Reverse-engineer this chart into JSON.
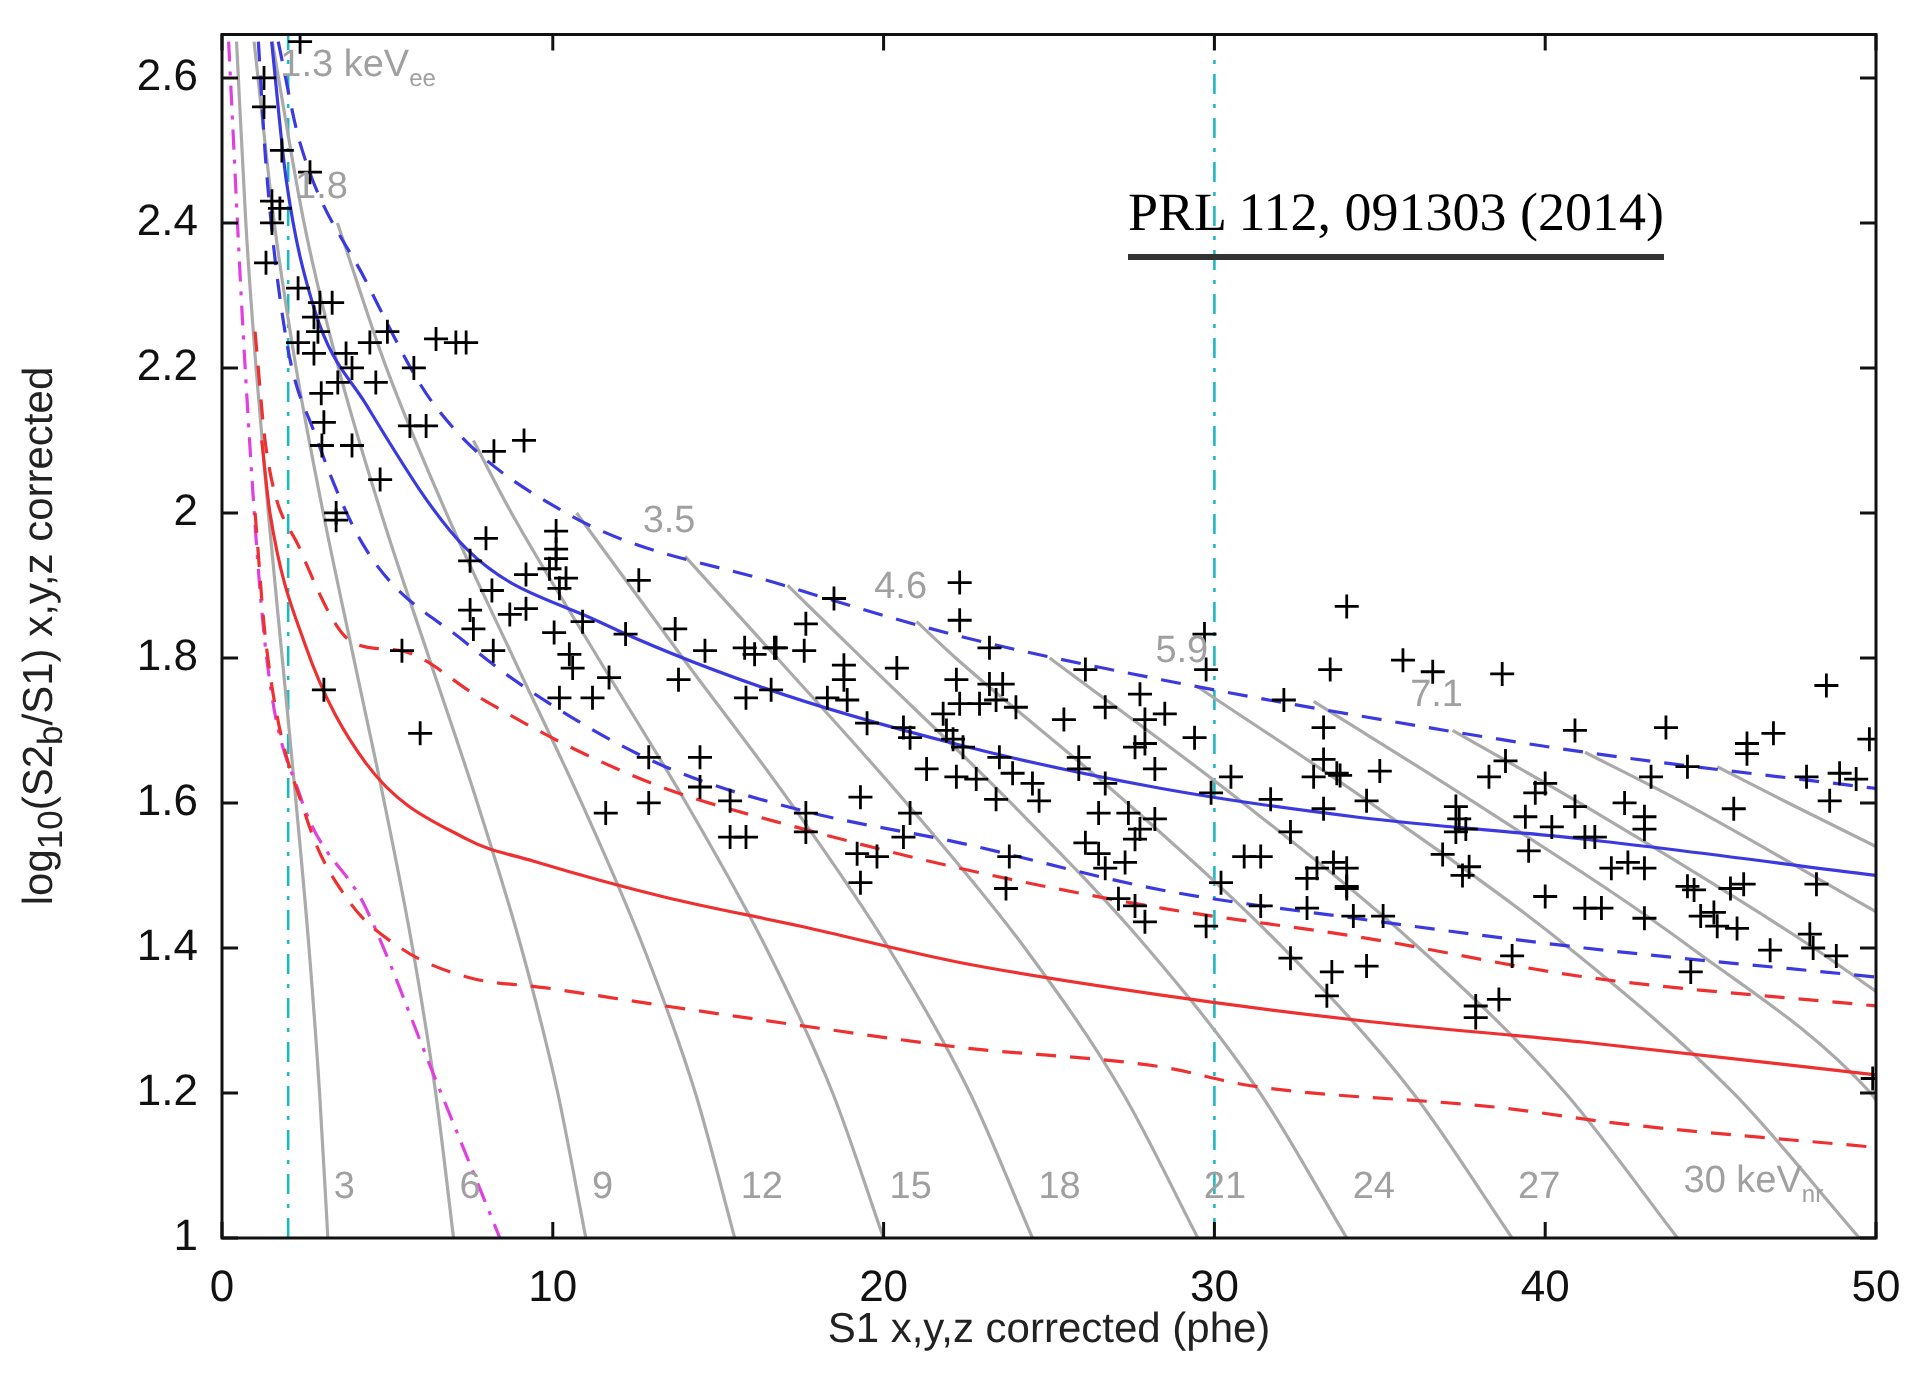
{
  "chart_data": {
    "type": "scatter",
    "xlabel": "S1 x,y,z corrected (phe)",
    "ylabel": "log$_{10}$(S2$_{b}$/S1) x,y,z corrected",
    "xlim": [
      0,
      50
    ],
    "ylim": [
      1,
      2.66
    ],
    "xticks": [
      0,
      10,
      20,
      30,
      40,
      50
    ],
    "yticks": [
      1,
      1.2,
      1.4,
      1.6,
      1.8,
      2,
      2.2,
      2.4,
      2.6
    ],
    "ref_lines": [
      {
        "axis": "x",
        "value": 2,
        "color": "#20b8c0",
        "line_style": "dashdot"
      },
      {
        "axis": "x",
        "value": 30,
        "color": "#20b8c0",
        "line_style": "dashdot"
      }
    ],
    "annotations": [
      "PRL 112, 091303 (2014)",
      {
        "text": "1.3 keV$_{ee}$",
        "x": 1.52,
        "y": 2.65
      },
      {
        "text": "1.8",
        "x": 3.49,
        "y": 2.4
      },
      {
        "text": "3.5",
        "x": 14.0,
        "y": 1.94
      },
      {
        "text": "4.6",
        "x": 21.0,
        "y": 1.85
      },
      {
        "text": "5.9",
        "x": 29.5,
        "y": 1.76
      },
      {
        "text": "7.1",
        "x": 37.2,
        "y": 1.7
      },
      {
        "text": "3",
        "x": 3.2,
        "y": 1
      },
      {
        "text": "6",
        "x": 7,
        "y": 1
      },
      {
        "text": "9",
        "x": 11,
        "y": 1
      },
      {
        "text": "12",
        "x": 15.5,
        "y": 1
      },
      {
        "text": "15",
        "x": 20,
        "y": 1
      },
      {
        "text": "18",
        "x": 24.5,
        "y": 1
      },
      {
        "text": "21",
        "x": 29.5,
        "y": 1
      },
      {
        "text": "24",
        "x": 34,
        "y": 1
      },
      {
        "text": "27",
        "x": 39,
        "y": 1
      },
      {
        "text": "30 keV$_{nr}$",
        "x": 44,
        "y": 1
      }
    ],
    "series": [
      {
        "marker": "cross",
        "color": "#000000",
        "x": [
          2.36,
          1.27,
          1.27,
          1.81,
          2.66,
          1.51,
          1.75,
          1.51,
          1.33,
          2.3,
          2.96,
          3.33,
          2.78,
          2.3,
          2.9,
          5.0,
          4.47,
          6.47,
          7.07,
          7.38,
          2.78,
          3.75,
          3.93,
          5.8,
          3.5,
          4.65,
          3.0,
          3.08,
          5.68,
          6.17,
          3.02,
          3.93,
          8.22,
          9.13,
          4.78,
          3.45,
          3.45,
          7.98,
          10.1,
          10.1,
          10.1,
          7.5,
          9.19,
          9.9,
          10.4,
          10.2,
          12.6,
          8.16,
          7.5,
          8.7,
          9.19,
          7.6,
          8.2,
          10.04,
          10.9,
          12.2,
          13.7,
          14.6,
          15.8,
          16.1,
          16.7,
          10.5,
          10.6,
          5.44,
          3.08,
          5.99,
          10.2,
          11.2,
          11.7,
          13.8,
          11.6,
          12.9,
          14.45,
          12.9,
          14.45,
          15.36,
          15.36,
          15.84,
          15.84,
          16.6,
          18.5,
          22.3,
          22.3,
          17.65,
          16.75,
          17.6,
          18.8,
          18.8,
          20.4,
          23.2,
          22.2,
          23.2,
          23.6,
          26.1,
          27.75,
          26.7,
          18.3,
          18.9,
          19.5,
          20.6,
          21.8,
          22.3,
          22.9,
          23.4,
          24.0,
          21.9,
          22.1,
          20.8,
          22.4,
          23.5,
          21.3,
          22.2,
          22.8,
          23.9,
          24.5,
          23.4,
          24.7,
          25.45,
          25.9,
          25.9,
          26.7,
          27.9,
          27.9,
          28.5,
          27.6,
          28.2,
          29.4,
          29.7,
          29.75,
          33.5,
          34.0,
          32.1,
          33.3,
          30.5,
          29.9,
          31.7,
          32.3,
          33.3,
          33.0,
          33.7,
          33.3,
          26.5,
          27.4,
          27.75,
          28.2,
          27.6,
          26.1,
          26.5,
          27.3,
          26.7,
          30.2,
          27.1,
          27.6,
          27.9,
          29.75,
          30.9,
          31.4,
          31.4,
          32.3,
          32.8,
          33.1,
          33.6,
          34.0,
          32.8,
          33.55,
          33.4,
          19.3,
          17.65,
          17.65,
          19.2,
          19.8,
          19.3,
          20.8,
          20.6,
          23.8,
          23.7,
          35.7,
          36.6,
          38.7,
          40.9,
          43.65,
          46.9,
          46.1,
          46.1,
          48.5,
          49.8,
          44.3,
          43.2,
          38.8,
          38.3,
          39.7,
          40.0,
          47.9,
          48.9,
          49.4,
          48.6,
          45.7,
          42.4,
          43.0,
          43.0,
          40.9,
          39.4,
          40.2,
          41.2,
          41.5,
          37.3,
          37.4,
          37.6,
          37.3,
          36.9,
          37.7,
          37.5,
          39.5,
          42.0,
          42.5,
          43.0,
          44.3,
          44.5,
          45.6,
          46.0,
          48.2,
          40.0,
          41.2,
          41.7,
          43.0,
          44.7,
          45.1,
          45.2,
          45.8,
          46.8,
          48.0,
          48.1,
          48.8,
          39.0,
          44.4,
          34.2,
          35.1,
          34.0,
          34.0,
          34.6,
          35.0,
          33.8,
          34.6,
          37.9,
          38.6,
          37.9,
          49.9
        ],
        "values": [
          2.65,
          2.6,
          2.56,
          2.5,
          2.47,
          2.43,
          2.42,
          2.4,
          2.345,
          2.31,
          2.29,
          2.29,
          2.27,
          2.235,
          2.25,
          2.25,
          2.235,
          2.24,
          2.235,
          2.235,
          2.22,
          2.22,
          2.2,
          2.2,
          2.18,
          2.18,
          2.165,
          2.125,
          2.12,
          2.12,
          2.093,
          2.093,
          2.085,
          2.1,
          2.046,
          2.0,
          1.99,
          1.965,
          1.975,
          1.95,
          1.937,
          1.934,
          1.915,
          1.923,
          1.91,
          1.896,
          1.907,
          1.893,
          1.866,
          1.86,
          1.868,
          1.84,
          1.81,
          1.835,
          1.85,
          1.833,
          1.84,
          1.81,
          1.814,
          1.805,
          1.814,
          1.805,
          1.786,
          1.81,
          1.756,
          1.696,
          1.745,
          1.745,
          1.773,
          1.77,
          1.586,
          1.663,
          1.663,
          1.6,
          1.622,
          1.603,
          1.553,
          1.553,
          1.745,
          1.756,
          1.882,
          1.904,
          1.852,
          1.847,
          1.814,
          1.81,
          1.79,
          1.77,
          1.786,
          1.814,
          1.77,
          1.764,
          1.764,
          1.784,
          1.75,
          1.732,
          1.745,
          1.742,
          1.71,
          1.704,
          1.723,
          1.737,
          1.737,
          1.742,
          1.732,
          1.7,
          1.688,
          1.69,
          1.677,
          1.663,
          1.647,
          1.636,
          1.633,
          1.641,
          1.627,
          1.605,
          1.603,
          1.715,
          1.663,
          1.647,
          1.627,
          1.715,
          1.682,
          1.723,
          1.677,
          1.647,
          1.69,
          1.833,
          1.784,
          1.784,
          1.871,
          1.742,
          1.704,
          1.636,
          1.614,
          1.605,
          1.56,
          1.66,
          1.636,
          1.641,
          1.592,
          1.586,
          1.586,
          1.564,
          1.578,
          1.55,
          1.545,
          1.53,
          1.518,
          1.51,
          1.49,
          1.468,
          1.458,
          1.436,
          1.43,
          1.526,
          1.526,
          1.458,
          1.386,
          1.496,
          1.51,
          1.518,
          1.485,
          1.455,
          1.367,
          1.334,
          1.608,
          1.586,
          1.56,
          1.53,
          1.526,
          1.49,
          1.586,
          1.553,
          1.526,
          1.482,
          1.797,
          1.781,
          1.778,
          1.7,
          1.704,
          1.696,
          1.682,
          1.668,
          1.762,
          1.688,
          1.65,
          1.636,
          1.658,
          1.636,
          1.614,
          1.627,
          1.636,
          1.641,
          1.633,
          1.603,
          1.592,
          1.6,
          1.581,
          1.564,
          1.595,
          1.581,
          1.567,
          1.553,
          1.553,
          1.595,
          1.578,
          1.564,
          1.56,
          1.529,
          1.512,
          1.5,
          1.534,
          1.51,
          1.518,
          1.51,
          1.485,
          1.48,
          1.482,
          1.488,
          1.488,
          1.471,
          1.455,
          1.455,
          1.441,
          1.444,
          1.449,
          1.43,
          1.427,
          1.397,
          1.419,
          1.4,
          1.389,
          1.389,
          1.367,
          1.444,
          1.444,
          1.51,
          1.482,
          1.375,
          1.644,
          1.638,
          1.603,
          1.32,
          1.329,
          1.304,
          1.22
        ]
      },
      {
        "type": "line",
        "marker": "none",
        "line_style": "solid",
        "color": "#3a3ae0",
        "x": [
          1.5,
          1.94,
          2.8,
          4.35,
          7.4,
          11.4,
          16.3,
          22.3,
          28.4,
          34.4,
          41.2,
          50
        ],
        "values": [
          2.65,
          2.46,
          2.28,
          2.15,
          1.95,
          1.85,
          1.76,
          1.68,
          1.62,
          1.58,
          1.55,
          1.5
        ]
      },
      {
        "type": "line",
        "marker": "none",
        "line_style": "dashed",
        "color": "#3a3ae0",
        "x": [
          1.7,
          2.36,
          4.35,
          6.4,
          10.4,
          17,
          22.3,
          28.4,
          34.4,
          41.2,
          50
        ],
        "values": [
          2.65,
          2.51,
          2.32,
          2.15,
          2.0,
          1.9,
          1.83,
          1.77,
          1.72,
          1.67,
          1.62
        ]
      },
      {
        "type": "line",
        "marker": "none",
        "line_style": "dashed",
        "color": "#3a3ae0",
        "x": [
          1.1,
          1.33,
          1.94,
          2.8,
          4.35,
          7.4,
          9.8,
          13.4,
          17.5,
          22.3,
          28.4,
          34.4,
          41.2,
          50
        ],
        "values": [
          2.65,
          2.48,
          2.24,
          2.11,
          1.95,
          1.82,
          1.74,
          1.65,
          1.59,
          1.545,
          1.48,
          1.44,
          1.4,
          1.36
        ]
      },
      {
        "type": "line",
        "marker": "none",
        "line_style": "solid",
        "color": "#ee3030",
        "x": [
          1.2,
          1.45,
          2.5,
          4.35,
          7.4,
          9.4,
          13.4,
          17.5,
          22.3,
          28.4,
          34.4,
          41.2,
          50
        ],
        "values": [
          2.1,
          2.0,
          1.82,
          1.655,
          1.55,
          1.52,
          1.47,
          1.43,
          1.38,
          1.335,
          1.3,
          1.27,
          1.225
        ]
      },
      {
        "type": "line",
        "marker": "none",
        "line_style": "dashed",
        "color": "#ee3030",
        "x": [
          1.0,
          1.33,
          2.36,
          4.0,
          5.4,
          7.8,
          10.4,
          13.4,
          17.5,
          22.3,
          28.4,
          34.4,
          41.2,
          50
        ],
        "values": [
          2.25,
          2.09,
          1.95,
          1.82,
          1.81,
          1.745,
          1.68,
          1.62,
          1.565,
          1.51,
          1.455,
          1.415,
          1.36,
          1.32
        ]
      },
      {
        "type": "line",
        "marker": "none",
        "line_style": "dashed",
        "color": "#ee3030",
        "x": [
          1.0,
          1.33,
          2.55,
          3.75,
          5.4,
          7.4,
          9.8,
          13.4,
          17.5,
          22.3,
          28.4,
          31.1,
          38.6,
          42.4,
          50
        ],
        "values": [
          2.0,
          1.82,
          1.58,
          1.47,
          1.4,
          1.36,
          1.345,
          1.32,
          1.293,
          1.263,
          1.236,
          1.21,
          1.18,
          1.157,
          1.125
        ]
      },
      {
        "type": "line",
        "marker": "none",
        "line_style": "dashdot",
        "color": "#e040e0",
        "x": [
          0.2,
          0.7,
          1.3,
          2.36,
          4.35,
          6.4,
          8.4
        ],
        "values": [
          2.65,
          2.2,
          1.82,
          1.61,
          1.455,
          1.225,
          1.0
        ]
      },
      {
        "type": "line",
        "marker": "none",
        "line_style": "solid",
        "color": "#aaaaaa",
        "x": [
          0.44,
          0.72,
          1.03,
          1.4,
          1.82,
          2.24,
          2.63,
          2.95,
          3.2
        ],
        "values": [
          2.65,
          2.4,
          2.2,
          2.0,
          1.8,
          1.6,
          1.4,
          1.2,
          1.0
        ]
      },
      {
        "type": "line",
        "marker": "none",
        "line_style": "solid",
        "color": "#aaaaaa",
        "x": [
          0.97,
          1.58,
          2.24,
          3.06,
          3.98,
          4.91,
          5.76,
          6.46,
          7
        ],
        "values": [
          2.65,
          2.4,
          2.2,
          2.0,
          1.8,
          1.6,
          1.4,
          1.2,
          1.0
        ]
      },
      {
        "type": "line",
        "marker": "none",
        "line_style": "solid",
        "color": "#aaaaaa",
        "x": [
          1.52,
          2.48,
          3.52,
          4.81,
          6.26,
          7.72,
          9.05,
          10.15,
          11
        ],
        "values": [
          2.65,
          2.4,
          2.2,
          2.0,
          1.8,
          1.6,
          1.4,
          1.2,
          1.0
        ]
      },
      {
        "type": "line",
        "marker": "none",
        "line_style": "solid",
        "color": "#aaaaaa",
        "x": [
          3.49,
          4.97,
          6.78,
          8.81,
          10.87,
          12.75,
          14.31,
          15.5
        ],
        "values": [
          2.4,
          2.2,
          2.0,
          1.8,
          1.6,
          1.4,
          1.2,
          1.0
        ]
      },
      {
        "type": "line",
        "marker": "none",
        "line_style": "solid",
        "color": "#aaaaaa",
        "x": [
          7.6,
          8.75,
          11.37,
          14.03,
          16.45,
          18.46,
          20
        ],
        "values": [
          2.1,
          2.0,
          1.8,
          1.6,
          1.4,
          1.2,
          1.0
        ]
      },
      {
        "type": "line",
        "marker": "none",
        "line_style": "solid",
        "color": "#aaaaaa",
        "x": [
          10.72,
          13.93,
          17.19,
          20.15,
          22.61,
          24.5
        ],
        "values": [
          2.0,
          1.8,
          1.6,
          1.4,
          1.2,
          1.0
        ]
      },
      {
        "type": "line",
        "marker": "none",
        "line_style": "solid",
        "color": "#aaaaaa",
        "x": [
          14.0,
          16.78,
          20.69,
          24.27,
          27.23,
          29.5
        ],
        "values": [
          1.94,
          1.8,
          1.6,
          1.4,
          1.2,
          1.0
        ]
      },
      {
        "type": "line",
        "marker": "none",
        "line_style": "solid",
        "color": "#aaaaaa",
        "x": [
          17.1,
          19.34,
          23.85,
          27.97,
          31.38,
          34
        ],
        "values": [
          1.9,
          1.8,
          1.6,
          1.4,
          1.2,
          1.0
        ]
      },
      {
        "type": "line",
        "marker": "none",
        "line_style": "solid",
        "color": "#aaaaaa",
        "x": [
          21.0,
          22.18,
          27.36,
          32.08,
          36,
          39
        ],
        "values": [
          1.85,
          1.8,
          1.6,
          1.4,
          1.2,
          1.0
        ]
      },
      {
        "type": "line",
        "marker": "none",
        "line_style": "solid",
        "color": "#aaaaaa",
        "x": [
          25.02,
          30.87,
          36.19,
          40.61,
          44
        ],
        "values": [
          1.8,
          1.6,
          1.4,
          1.2,
          1.0
        ]
      },
      {
        "type": "line",
        "marker": "none",
        "line_style": "solid",
        "color": "#aaaaaa",
        "x": [
          29.5,
          34.72,
          40.72,
          45.69,
          49.5
        ],
        "values": [
          1.76,
          1.6,
          1.4,
          1.2,
          1.0
        ]
      },
      {
        "type": "line",
        "marker": "none",
        "line_style": "solid",
        "color": "#aaaaaa",
        "x": [
          33.0,
          37.88,
          44.42,
          49.84,
          50
        ],
        "values": [
          1.74,
          1.6,
          1.4,
          1.2,
          1.19
        ]
      },
      {
        "type": "line",
        "marker": "none",
        "line_style": "solid",
        "color": "#aaaaaa",
        "x": [
          37.2,
          41.04,
          48.12,
          50
        ],
        "values": [
          1.7,
          1.6,
          1.4,
          1.34
        ]
      },
      {
        "type": "line",
        "marker": "none",
        "line_style": "solid",
        "color": "#aaaaaa",
        "x": [
          41.2,
          44.19,
          50
        ],
        "values": [
          1.67,
          1.6,
          1.45
        ]
      },
      {
        "type": "line",
        "marker": "none",
        "line_style": "solid",
        "color": "#aaaaaa",
        "x": [
          45.2,
          47.35,
          50
        ],
        "values": [
          1.65,
          1.6,
          1.54
        ]
      }
    ]
  }
}
